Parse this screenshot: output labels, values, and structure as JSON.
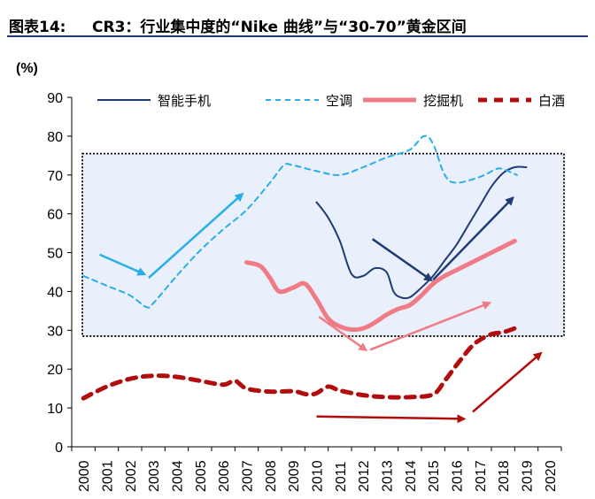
{
  "header": {
    "figure_label": "图表14:",
    "figure_title": "CR3：行业集中度的“Nike 曲线”与“30-70”黄金区间"
  },
  "chart_data": {
    "type": "line",
    "ylabel": "(%)",
    "ylim": [
      0,
      90
    ],
    "yticks": [
      "0",
      "10",
      "20",
      "30",
      "40",
      "50",
      "60",
      "70",
      "80",
      "90"
    ],
    "x": [
      "2000",
      "2001",
      "2002",
      "2003",
      "2004",
      "2005",
      "2006",
      "2007",
      "2008",
      "2009",
      "2010",
      "2011",
      "2012",
      "2013",
      "2014",
      "2015",
      "2016",
      "2017",
      "2018",
      "2019",
      "2020"
    ],
    "legend_position": "top",
    "golden_band": [
      28.5,
      75.5
    ],
    "series": [
      {
        "name": "智能手机",
        "style": "solid",
        "color": "#1f3b73",
        "points": [
          [
            2010.0,
            63
          ],
          [
            2010.5,
            59
          ],
          [
            2011.0,
            53
          ],
          [
            2011.5,
            44.5
          ],
          [
            2012.0,
            44
          ],
          [
            2012.5,
            46
          ],
          [
            2013.0,
            45
          ],
          [
            2013.3,
            40
          ],
          [
            2013.6,
            38.5
          ],
          [
            2014.0,
            38.5
          ],
          [
            2014.5,
            41
          ],
          [
            2015.0,
            44
          ],
          [
            2015.5,
            48
          ],
          [
            2016.0,
            52
          ],
          [
            2016.5,
            57
          ],
          [
            2017.0,
            62
          ],
          [
            2017.5,
            67
          ],
          [
            2018.0,
            70.5
          ],
          [
            2018.5,
            72
          ],
          [
            2019.0,
            72
          ]
        ]
      },
      {
        "name": "空调",
        "style": "dashed",
        "color": "#29aee8",
        "points": [
          [
            2000,
            44
          ],
          [
            2001,
            41.5
          ],
          [
            2002,
            39
          ],
          [
            2002.7,
            36
          ],
          [
            2003,
            37
          ],
          [
            2004,
            44
          ],
          [
            2005,
            50.5
          ],
          [
            2006,
            56
          ],
          [
            2007,
            61
          ],
          [
            2008,
            68
          ],
          [
            2008.6,
            72.5
          ],
          [
            2009,
            72.5
          ],
          [
            2010,
            71
          ],
          [
            2011,
            70
          ],
          [
            2012,
            72
          ],
          [
            2013,
            74.5
          ],
          [
            2014,
            76.5
          ],
          [
            2014.6,
            80
          ],
          [
            2015,
            78
          ],
          [
            2015.5,
            70
          ],
          [
            2016,
            68
          ],
          [
            2017,
            69.5
          ],
          [
            2017.7,
            71.5
          ],
          [
            2018,
            71.5
          ],
          [
            2018.6,
            70
          ]
        ]
      },
      {
        "name": "挖掘机",
        "style": "solid-thick",
        "color": "#f07b85",
        "points": [
          [
            2007,
            47.5
          ],
          [
            2007.6,
            46.5
          ],
          [
            2008,
            43.5
          ],
          [
            2008.4,
            40
          ],
          [
            2009,
            41
          ],
          [
            2009.5,
            42
          ],
          [
            2010,
            38
          ],
          [
            2010.5,
            33
          ],
          [
            2011,
            31
          ],
          [
            2011.5,
            30.2
          ],
          [
            2012,
            30.5
          ],
          [
            2012.5,
            32
          ],
          [
            2013,
            34
          ],
          [
            2013.5,
            35.5
          ],
          [
            2014,
            36.5
          ],
          [
            2014.5,
            39
          ],
          [
            2015,
            42
          ],
          [
            2015.5,
            44
          ],
          [
            2016,
            45.5
          ],
          [
            2016.5,
            47
          ],
          [
            2017,
            48.5
          ],
          [
            2017.5,
            50
          ],
          [
            2018,
            51.5
          ],
          [
            2018.5,
            53
          ]
        ]
      },
      {
        "name": "白酒",
        "style": "dashed-thick",
        "color": "#b20d0d",
        "points": [
          [
            2000,
            12.5
          ],
          [
            2001,
            15.5
          ],
          [
            2002,
            17.5
          ],
          [
            2003,
            18.3
          ],
          [
            2004,
            18
          ],
          [
            2005,
            17
          ],
          [
            2006,
            16
          ],
          [
            2006.5,
            17
          ],
          [
            2007,
            15
          ],
          [
            2008,
            14.2
          ],
          [
            2009,
            14.3
          ],
          [
            2009.6,
            13.5
          ],
          [
            2010,
            13.8
          ],
          [
            2010.5,
            15.5
          ],
          [
            2011,
            14.5
          ],
          [
            2012,
            13.3
          ],
          [
            2013,
            12.8
          ],
          [
            2014,
            12.8
          ],
          [
            2015,
            13.5
          ],
          [
            2015.5,
            17
          ],
          [
            2016,
            21
          ],
          [
            2016.6,
            25.5
          ],
          [
            2017,
            27.5
          ],
          [
            2017.5,
            29
          ],
          [
            2018,
            29.5
          ],
          [
            2018.5,
            30.5
          ]
        ]
      }
    ],
    "annotations": [
      {
        "type": "arrow",
        "color": "#29aee8",
        "from": [
          2000.7,
          49.5
        ],
        "to": [
          2002.6,
          44.5
        ]
      },
      {
        "type": "arrow",
        "color": "#29aee8",
        "from": [
          2002.8,
          43.5
        ],
        "to": [
          2006.8,
          65
        ]
      },
      {
        "type": "arrow",
        "color": "#1f3b73",
        "from": [
          2012.4,
          53.5
        ],
        "to": [
          2014.9,
          43
        ]
      },
      {
        "type": "arrow",
        "color": "#1f3b73",
        "from": [
          2015.0,
          43
        ],
        "to": [
          2018.4,
          64
        ]
      },
      {
        "type": "arrow",
        "color": "#f07b85",
        "from": [
          2010.1,
          33.5
        ],
        "to": [
          2012.1,
          25
        ]
      },
      {
        "type": "arrow",
        "color": "#f07b85",
        "from": [
          2012.3,
          25
        ],
        "to": [
          2017.4,
          37
        ]
      },
      {
        "type": "arrow",
        "color": "#b20d0d",
        "from": [
          2010.0,
          7.8
        ],
        "to": [
          2016.3,
          7.2
        ]
      },
      {
        "type": "arrow",
        "color": "#b20d0d",
        "from": [
          2016.7,
          9
        ],
        "to": [
          2019.6,
          24
        ]
      }
    ]
  }
}
